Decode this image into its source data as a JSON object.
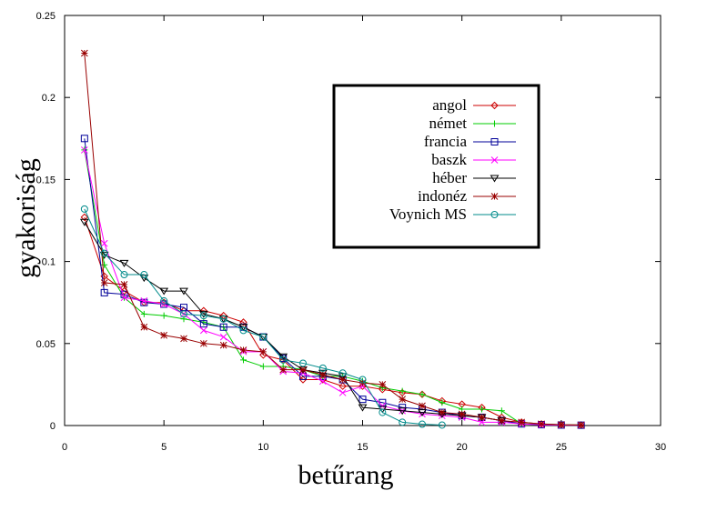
{
  "chart_data": {
    "type": "line",
    "xlabel": "betűrang",
    "ylabel": "gyakoriság",
    "xlim": [
      0,
      30
    ],
    "ylim": [
      0,
      0.25
    ],
    "xticks": [
      "0",
      "5",
      "10",
      "15",
      "20",
      "25",
      "30"
    ],
    "yticks": [
      "0",
      "0.05",
      "0.1",
      "0.15",
      "0.2",
      "0.25"
    ],
    "grid": false,
    "legend_position": "top-right",
    "series": [
      {
        "name": "angol",
        "color": "#cc0000",
        "marker": "diamond",
        "x": [
          1,
          2,
          3,
          4,
          5,
          6,
          7,
          8,
          9,
          10,
          11,
          12,
          13,
          14,
          15,
          16,
          17,
          18,
          19,
          20,
          21,
          22,
          23,
          24,
          25,
          26
        ],
        "y": [
          0.127,
          0.091,
          0.082,
          0.075,
          0.075,
          0.07,
          0.07,
          0.067,
          0.063,
          0.043,
          0.04,
          0.028,
          0.028,
          0.024,
          0.024,
          0.022,
          0.02,
          0.019,
          0.015,
          0.013,
          0.011,
          0.005,
          0.002,
          0.001,
          0.0005,
          0.0003
        ]
      },
      {
        "name": "német",
        "color": "#00cc00",
        "marker": "plus",
        "x": [
          1,
          2,
          3,
          4,
          5,
          6,
          7,
          8,
          9,
          10,
          11,
          12,
          13,
          14,
          15,
          16,
          17,
          18,
          19,
          20,
          21,
          22,
          23,
          24,
          25,
          26
        ],
        "y": [
          0.168,
          0.098,
          0.078,
          0.068,
          0.067,
          0.065,
          0.063,
          0.06,
          0.04,
          0.036,
          0.036,
          0.034,
          0.03,
          0.03,
          0.027,
          0.023,
          0.021,
          0.019,
          0.014,
          0.01,
          0.01,
          0.009,
          0.001,
          0.001,
          0.0005,
          0.0003
        ]
      },
      {
        "name": "francia",
        "color": "#000099",
        "marker": "square",
        "x": [
          1,
          2,
          3,
          4,
          5,
          6,
          7,
          8,
          9,
          10,
          11,
          12,
          13,
          14,
          15,
          16,
          17,
          18,
          19,
          20,
          21,
          22,
          23,
          24,
          25,
          26
        ],
        "y": [
          0.175,
          0.081,
          0.08,
          0.075,
          0.074,
          0.072,
          0.062,
          0.06,
          0.06,
          0.054,
          0.041,
          0.03,
          0.03,
          0.028,
          0.016,
          0.014,
          0.011,
          0.01,
          0.008,
          0.006,
          0.005,
          0.003,
          0.001,
          0.0005,
          0.0003,
          0.0002
        ]
      },
      {
        "name": "baszk",
        "color": "#ff00ff",
        "marker": "cross",
        "x": [
          1,
          2,
          3,
          4,
          5,
          6,
          7,
          8,
          9,
          10,
          11,
          12,
          13,
          14,
          15,
          16,
          17,
          18,
          19,
          20,
          21,
          22,
          23,
          24,
          25,
          26
        ],
        "y": [
          0.168,
          0.111,
          0.078,
          0.076,
          0.074,
          0.068,
          0.058,
          0.054,
          0.045,
          0.045,
          0.033,
          0.032,
          0.027,
          0.02,
          0.024,
          0.012,
          0.009,
          0.007,
          0.006,
          0.005,
          0.002,
          0.002,
          0.001,
          0.0005,
          0.0003,
          0.0002
        ]
      },
      {
        "name": "héber",
        "color": "#000000",
        "marker": "triangle-down",
        "x": [
          1,
          2,
          3,
          4,
          5,
          6,
          7,
          8,
          9,
          10,
          11,
          12,
          13,
          14,
          15,
          16,
          17,
          18,
          19,
          20,
          21,
          22
        ],
        "y": [
          0.124,
          0.104,
          0.099,
          0.09,
          0.082,
          0.082,
          0.068,
          0.065,
          0.06,
          0.054,
          0.042,
          0.034,
          0.032,
          0.03,
          0.011,
          0.01,
          0.009,
          0.008,
          0.007,
          0.006,
          0.005,
          0.003
        ]
      },
      {
        "name": "indonéz",
        "color": "#990000",
        "marker": "star",
        "x": [
          1,
          2,
          3,
          4,
          5,
          6,
          7,
          8,
          9,
          10,
          11,
          12,
          13,
          14,
          15,
          16,
          17,
          18,
          19,
          20,
          21,
          22,
          23,
          24,
          25,
          26
        ],
        "y": [
          0.227,
          0.087,
          0.086,
          0.06,
          0.055,
          0.053,
          0.05,
          0.049,
          0.046,
          0.045,
          0.034,
          0.034,
          0.031,
          0.028,
          0.026,
          0.025,
          0.016,
          0.012,
          0.008,
          0.007,
          0.005,
          0.003,
          0.002,
          0.001,
          0.0005,
          0.0003
        ]
      },
      {
        "name": "Voynich MS",
        "color": "#008b8b",
        "marker": "circle",
        "x": [
          1,
          2,
          3,
          4,
          5,
          6,
          7,
          8,
          9,
          10,
          11,
          12,
          13,
          14,
          15,
          16,
          17,
          18,
          19
        ],
        "y": [
          0.132,
          0.105,
          0.092,
          0.092,
          0.076,
          0.068,
          0.067,
          0.065,
          0.058,
          0.054,
          0.04,
          0.038,
          0.035,
          0.032,
          0.028,
          0.008,
          0.002,
          0.0008,
          0.0003
        ]
      }
    ]
  }
}
